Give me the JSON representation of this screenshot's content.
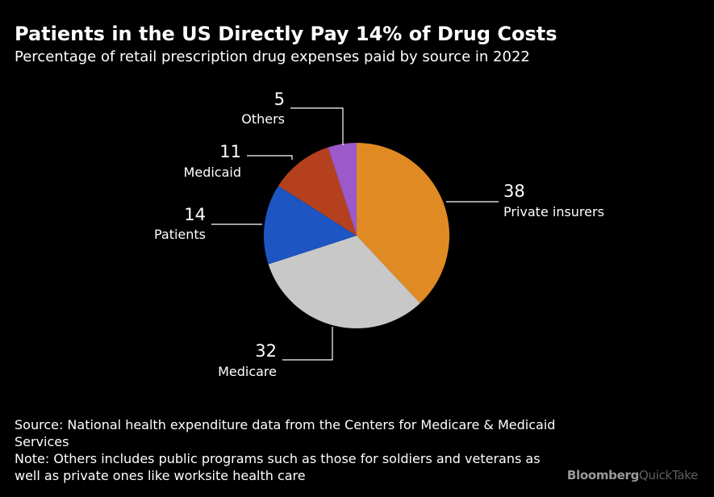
{
  "title": "Patients in the US Directly Pay 14% of Drug Costs",
  "subtitle": "Percentage of retail prescription drug expenses paid by source in 2022",
  "chart_data": {
    "type": "pie",
    "title": "Patients in the US Directly Pay 14% of Drug Costs",
    "subtitle": "Percentage of retail prescription drug expenses paid by source in 2022",
    "slices": [
      {
        "label": "Private insurers",
        "value": 38,
        "display": "38",
        "color": "#e08a24"
      },
      {
        "label": "Medicare",
        "value": 32,
        "display": "32",
        "color": "#c8c8c8"
      },
      {
        "label": "Patients",
        "value": 14,
        "display": "14",
        "color": "#1d55c2"
      },
      {
        "label": "Medicaid",
        "value": 11,
        "display": "11",
        "color": "#b5401d"
      },
      {
        "label": "Others",
        "value": 5,
        "display": "5",
        "color": "#9b59c9"
      }
    ]
  },
  "footer": {
    "source": "Source: National health expenditure data from the Centers for Medicare & Medicaid Services",
    "note": "Note: Others includes public programs such as those for soldiers and veterans as well as private ones like worksite health care"
  },
  "brand": {
    "part1": "Bloomberg",
    "part2": "QuickTake"
  }
}
